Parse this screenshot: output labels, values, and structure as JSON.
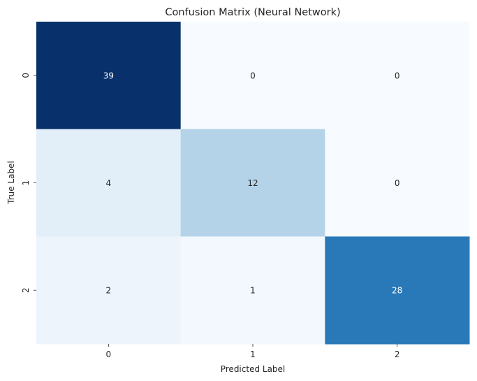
{
  "chart_data": {
    "type": "heatmap",
    "title": "Confusion Matrix (Neural Network)",
    "xlabel": "Predicted Label",
    "ylabel": "True Label",
    "x_ticks": [
      "0",
      "1",
      "2"
    ],
    "y_ticks": [
      "0",
      "1",
      "2"
    ],
    "values": [
      [
        39,
        0,
        0
      ],
      [
        4,
        12,
        0
      ],
      [
        2,
        1,
        28
      ]
    ],
    "colormap": "Blues",
    "vmin": 0,
    "vmax": 39,
    "colorbar": false,
    "annotations": true,
    "colors": {
      "low": "#f7fbff",
      "high": "#08306b"
    }
  }
}
